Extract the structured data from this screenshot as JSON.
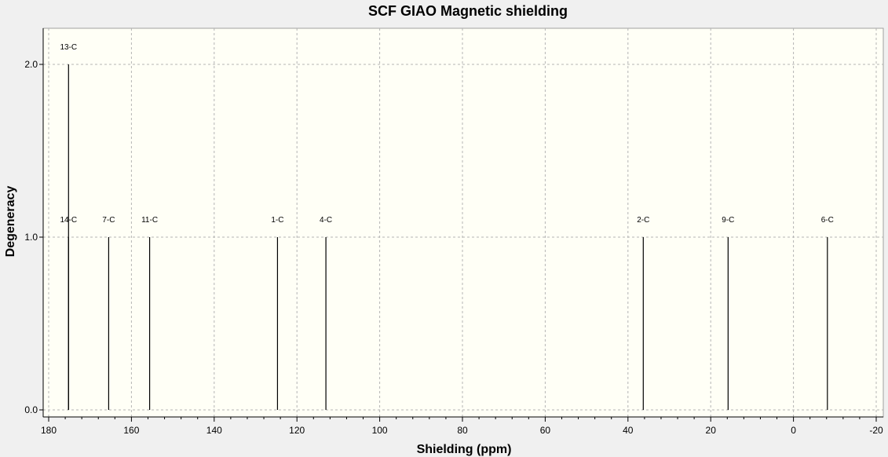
{
  "chart_data": {
    "type": "bar",
    "title": "SCF GIAO Magnetic shielding",
    "xlabel": "Shielding (ppm)",
    "ylabel": "Degeneracy",
    "xlim": [
      180,
      -20
    ],
    "ylim": [
      0,
      2.2
    ],
    "xticks": [
      180,
      160,
      140,
      120,
      100,
      80,
      60,
      40,
      20,
      0,
      -20
    ],
    "xtick_labels": [
      "180",
      "160",
      "140",
      "120",
      "100",
      "80",
      "60",
      "40",
      "20",
      "0",
      "-20"
    ],
    "yticks": [
      0,
      1,
      2
    ],
    "ytick_labels": [
      "0.0",
      "1.0",
      "2.0"
    ],
    "grid": true,
    "plot_background": "#fffff6",
    "peaks": [
      {
        "label": "13-C",
        "x": 175.2,
        "y": 2.0
      },
      {
        "label": "14-C",
        "x": 175.2,
        "y": 1.0
      },
      {
        "label": "7-C",
        "x": 165.5,
        "y": 1.0
      },
      {
        "label": "11-C",
        "x": 155.6,
        "y": 1.0
      },
      {
        "label": "1-C",
        "x": 124.7,
        "y": 1.0
      },
      {
        "label": "4-C",
        "x": 113.0,
        "y": 1.0
      },
      {
        "label": "2-C",
        "x": 36.3,
        "y": 1.0
      },
      {
        "label": "9-C",
        "x": 15.8,
        "y": 1.0
      },
      {
        "label": "6-C",
        "x": -8.2,
        "y": 1.0
      }
    ]
  }
}
